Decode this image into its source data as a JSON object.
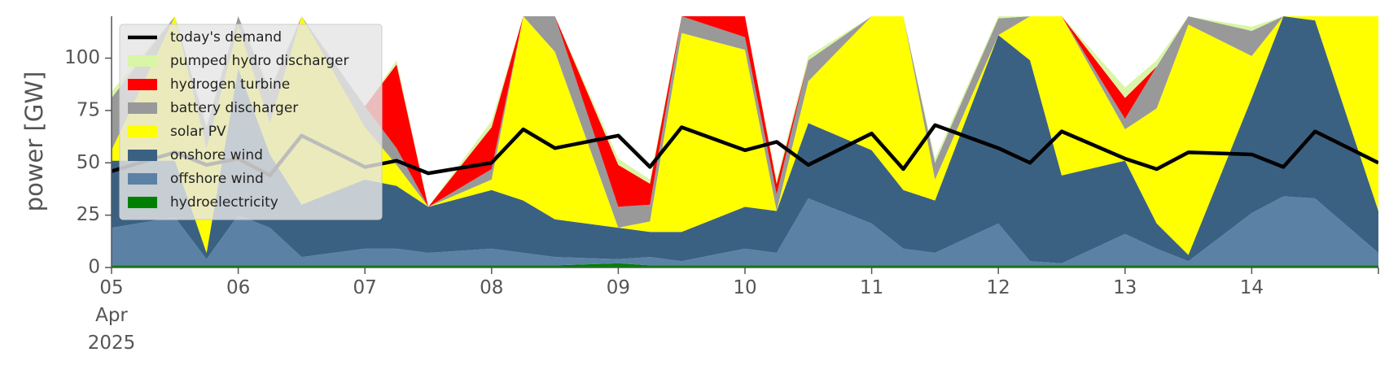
{
  "chart_data": {
    "type": "area",
    "ylabel": "power [GW]",
    "ylim": [
      0,
      120
    ],
    "xlim": [
      "2025-04-05T00:00",
      "2025-04-15T00:00"
    ],
    "grid": false,
    "legend_position": "upper-left",
    "y_ticks": [
      0,
      25,
      50,
      75,
      100
    ],
    "x_ticks": [
      {
        "lines": [
          "05",
          "Apr",
          "2025"
        ]
      },
      {
        "lines": [
          "06"
        ]
      },
      {
        "lines": [
          "07"
        ]
      },
      {
        "lines": [
          "08"
        ]
      },
      {
        "lines": [
          "09"
        ]
      },
      {
        "lines": [
          "10"
        ]
      },
      {
        "lines": [
          "11"
        ]
      },
      {
        "lines": [
          "12"
        ]
      },
      {
        "lines": [
          "13"
        ]
      },
      {
        "lines": [
          "14"
        ]
      }
    ],
    "x_hours": [
      0,
      12,
      18,
      24,
      30,
      36,
      48,
      54,
      60,
      72,
      78,
      84,
      96,
      102,
      108,
      120,
      126,
      132,
      144,
      150,
      156,
      168,
      174,
      180,
      192,
      198,
      204,
      216,
      222,
      228,
      240
    ],
    "series": [
      {
        "name": "hydroelectricity",
        "color": "#008000",
        "values": [
          1,
          1,
          1,
          1,
          1,
          1,
          1,
          1,
          1,
          1,
          1,
          1,
          2,
          1,
          1,
          1,
          1,
          1,
          1,
          1,
          1,
          1,
          1,
          1,
          1,
          1,
          1,
          1,
          1,
          1,
          1
        ]
      },
      {
        "name": "offshore wind",
        "color": "#5b82a5",
        "values": [
          18,
          23,
          3,
          24,
          18,
          4,
          8,
          8,
          6,
          8,
          6,
          4,
          2,
          4,
          2,
          8,
          6,
          32,
          20,
          8,
          6,
          20,
          2,
          1,
          15,
          8,
          2,
          25,
          33,
          32,
          6
        ]
      },
      {
        "name": "onshore wind",
        "color": "#3b6182",
        "values": [
          32,
          27,
          3,
          70,
          35,
          25,
          33,
          30,
          22,
          28,
          25,
          18,
          15,
          12,
          14,
          20,
          20,
          36,
          35,
          28,
          25,
          90,
          96,
          42,
          35,
          12,
          3,
          55,
          90,
          85,
          20
        ]
      },
      {
        "name": "solar PV",
        "color": "#ffff00",
        "values": [
          5,
          95,
          50,
          20,
          15,
          90,
          25,
          10,
          0,
          5,
          95,
          80,
          0,
          5,
          95,
          75,
          0,
          20,
          85,
          90,
          10,
          0,
          55,
          95,
          15,
          55,
          110,
          20,
          0,
          40,
          95
        ]
      },
      {
        "name": "battery discharger",
        "color": "#999999",
        "values": [
          25,
          20,
          10,
          15,
          15,
          18,
          10,
          8,
          0,
          5,
          8,
          20,
          10,
          8,
          8,
          6,
          8,
          10,
          30,
          15,
          8,
          8,
          20,
          10,
          5,
          20,
          10,
          12,
          15,
          20,
          10
        ]
      },
      {
        "name": "hydrogen turbine",
        "color": "#ff0000",
        "values": [
          0,
          0,
          0,
          0,
          0,
          0,
          0,
          40,
          0,
          20,
          0,
          0,
          20,
          10,
          0,
          10,
          5,
          0,
          0,
          0,
          0,
          0,
          0,
          0,
          10,
          0,
          0,
          0,
          0,
          0,
          5
        ]
      },
      {
        "name": "pumped hydro discharger",
        "color": "#d9f5a6",
        "values": [
          3,
          2,
          1,
          2,
          2,
          2,
          0,
          2,
          0,
          3,
          2,
          2,
          3,
          2,
          2,
          2,
          2,
          2,
          2,
          2,
          2,
          2,
          2,
          2,
          5,
          3,
          2,
          2,
          2,
          2,
          2
        ]
      }
    ],
    "demand": {
      "name": "today's demand",
      "color": "#000000",
      "values": [
        46,
        55,
        49,
        52,
        44,
        63,
        48,
        51,
        45,
        50,
        66,
        57,
        63,
        48,
        67,
        56,
        60,
        49,
        64,
        47,
        68,
        57,
        50,
        65,
        52,
        47,
        55,
        54,
        48,
        65,
        50
      ]
    }
  }
}
